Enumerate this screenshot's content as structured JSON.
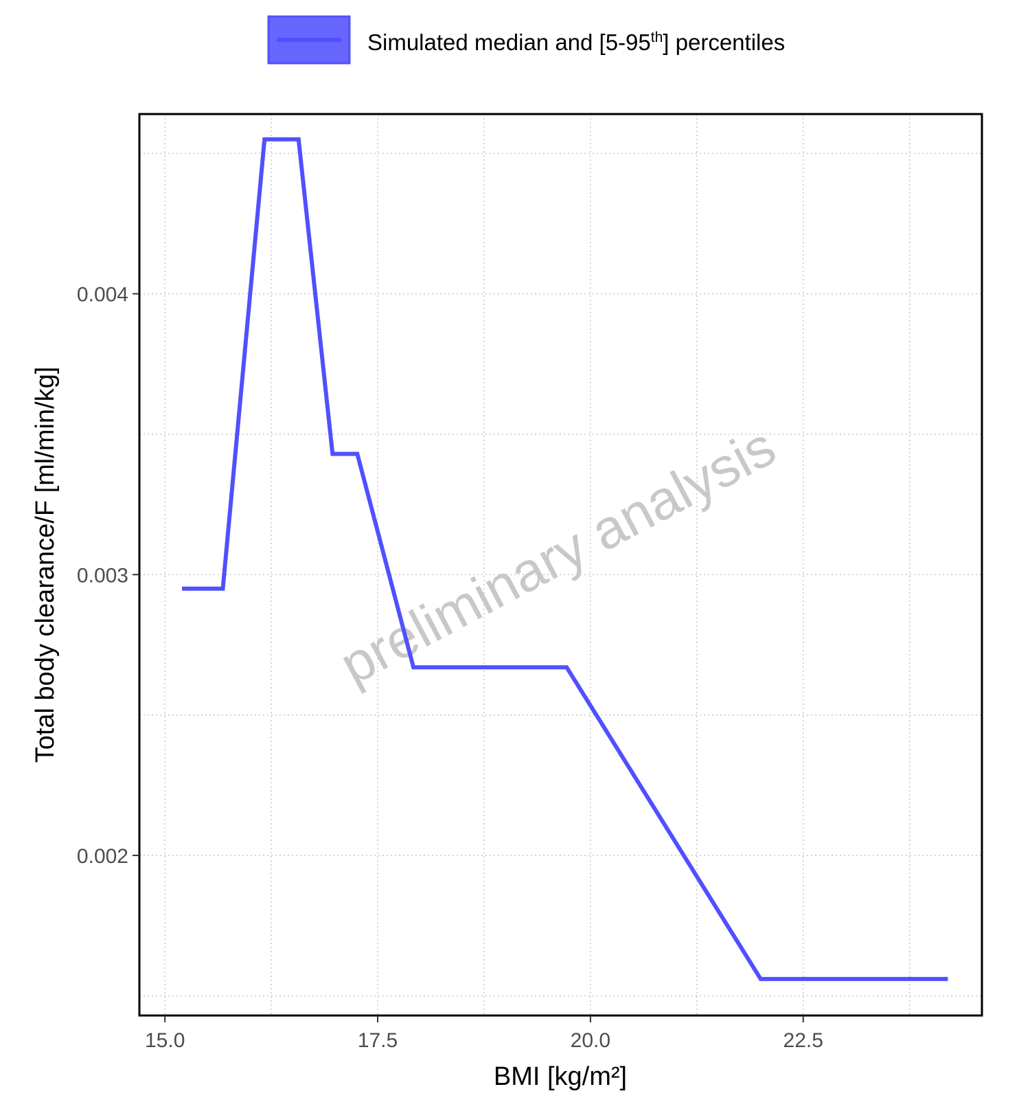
{
  "chart_data": {
    "type": "line",
    "legend": {
      "label_prefix": "Simulated median and [5-95",
      "label_superscript": "th",
      "label_suffix": "] percentiles",
      "position": "top",
      "swatch_fill": "#6666ff",
      "swatch_border": "#5050ff"
    },
    "watermark": "preliminary analysis",
    "xlabel": "BMI [kg/m²]",
    "ylabel": "Total body clearance/F [ml/min/kg]",
    "xlim": [
      14.7,
      24.6
    ],
    "ylim": [
      0.00143,
      0.00464
    ],
    "x_ticks": [
      15.0,
      17.5,
      20.0,
      22.5
    ],
    "x_tick_labels": [
      "15.0",
      "17.5",
      "20.0",
      "22.5"
    ],
    "x_minor_ticks": [
      16.25,
      18.75,
      21.25,
      23.75
    ],
    "y_ticks": [
      0.002,
      0.003,
      0.004
    ],
    "y_tick_labels": [
      "0.002",
      "0.003",
      "0.004"
    ],
    "y_minor_ticks": [
      0.0015,
      0.0025,
      0.0035,
      0.0045
    ],
    "grid": true,
    "series": [
      {
        "color": "#5050ff",
        "x": [
          15.2,
          15.68,
          16.17,
          16.57,
          16.97,
          17.26,
          17.92,
          19.72,
          22.0,
          24.2
        ],
        "y": [
          0.00295,
          0.00295,
          0.00455,
          0.00455,
          0.00343,
          0.00343,
          0.00267,
          0.00267,
          0.00156,
          0.00156
        ]
      }
    ]
  }
}
